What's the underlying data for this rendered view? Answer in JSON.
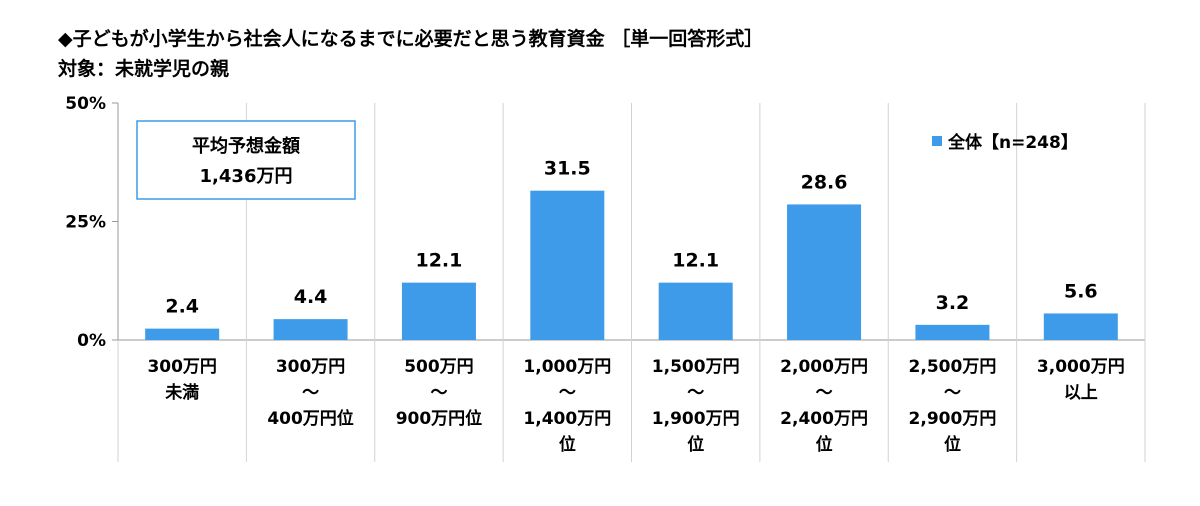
{
  "title": "◆子どもが小学生から社会人になるまでに必要だと思う教育資金 ［単一回答形式］",
  "subtitle": "対象：未就学児の親",
  "avg_box": {
    "label": "平均予想金額",
    "value": "1,436万円"
  },
  "chart_data": {
    "type": "bar",
    "title": "◆子どもが小学生から社会人になるまでに必要だと思う教育資金 ［単一回答形式］",
    "categories": [
      [
        "300万円",
        "未満"
      ],
      [
        "300万円",
        "〜",
        "400万円位"
      ],
      [
        "500万円",
        "〜",
        "900万円位"
      ],
      [
        "1,000万円",
        "〜",
        "1,400万円",
        "位"
      ],
      [
        "1,500万円",
        "〜",
        "1,900万円",
        "位"
      ],
      [
        "2,000万円",
        "〜",
        "2,400万円",
        "位"
      ],
      [
        "2,500万円",
        "〜",
        "2,900万円",
        "位"
      ],
      [
        "3,000万円",
        "以上"
      ]
    ],
    "series": [
      {
        "name": "全体【n=248】",
        "values": [
          2.4,
          4.4,
          12.1,
          31.5,
          12.1,
          28.6,
          3.2,
          5.6
        ],
        "color": "#3d9be9"
      }
    ],
    "value_labels": [
      "2.4",
      "4.4",
      "12.1",
      "31.5",
      "12.1",
      "28.6",
      "3.2",
      "5.6"
    ],
    "ylim": [
      0,
      50
    ],
    "yticks": [
      0,
      25,
      50
    ],
    "ytick_labels": [
      "0%",
      "25%",
      "50%"
    ],
    "xlabel": "",
    "ylabel": "",
    "grid": "vertical separators",
    "legend": "top-right"
  }
}
